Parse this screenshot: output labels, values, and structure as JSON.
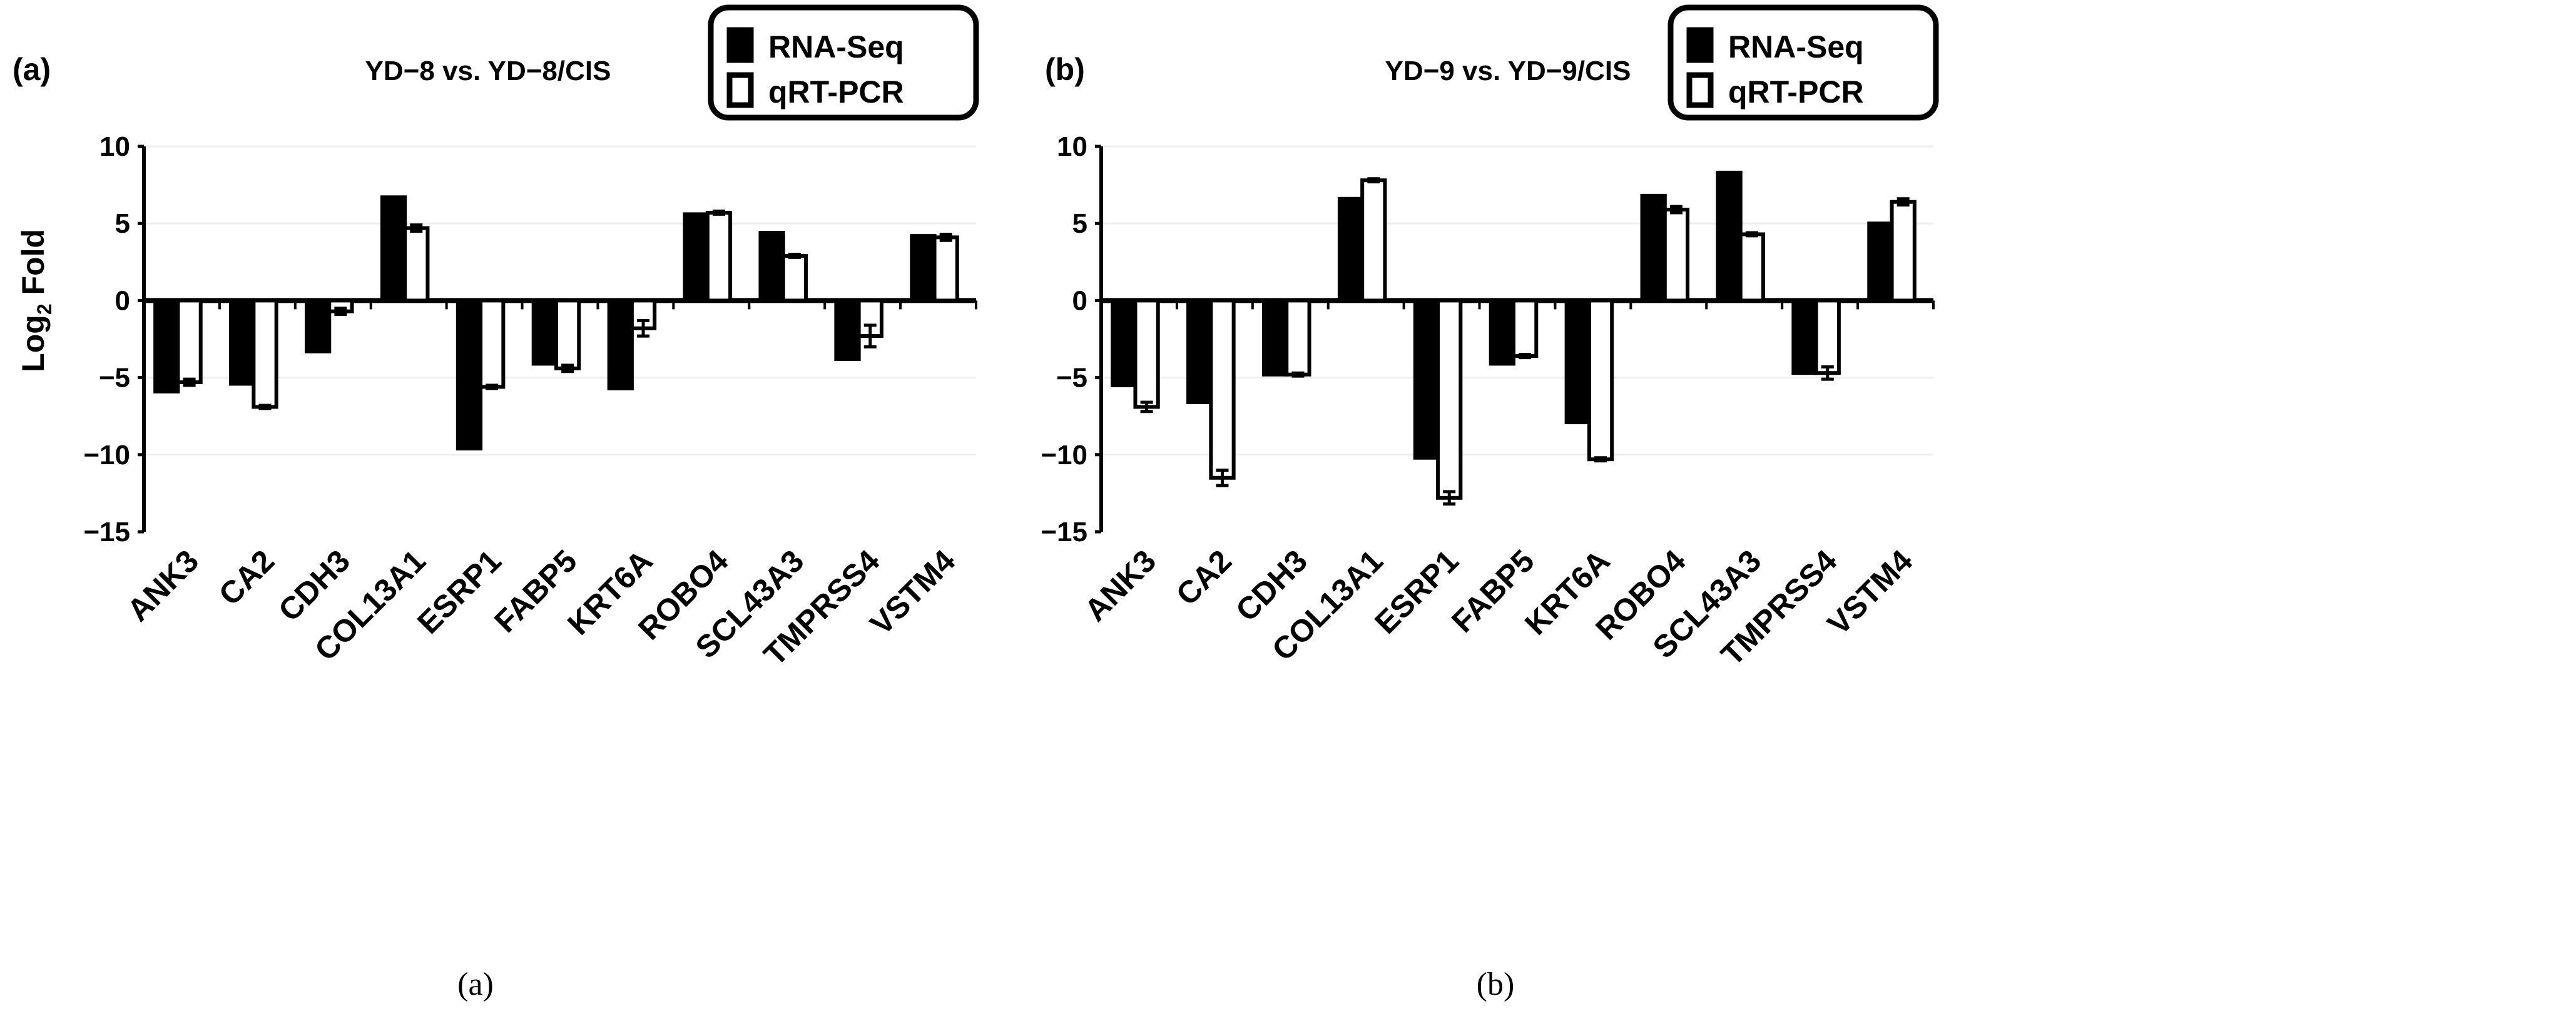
{
  "chart_data": [
    {
      "type": "bar",
      "panel_label": "(a)",
      "caption": "(a)",
      "title": "YD−8 vs. YD−8/CIS",
      "ylabel": "Log2 Fold",
      "ylabel_main": "Log",
      "ylabel_sub": "2",
      "ylabel_rest": " Fold",
      "ylim": [
        -15,
        10
      ],
      "yticks": [
        10,
        5,
        0,
        -5,
        -10,
        -15
      ],
      "grid": true,
      "legend_position": "top-right",
      "categories": [
        "ANK3",
        "CA2",
        "CDH3",
        "COL13A1",
        "ESRP1",
        "FABP5",
        "KRT6A",
        "ROBO4",
        "SCL43A3",
        "TMPRSS4",
        "VSTM4"
      ],
      "series": [
        {
          "name": "RNA-Seq",
          "color": "#000000",
          "values": [
            -5.9,
            -5.4,
            -3.3,
            6.7,
            -9.6,
            -4.1,
            -5.7,
            5.6,
            4.4,
            -3.8,
            4.2
          ]
        },
        {
          "name": "qRT-PCR",
          "color": "#ffffff",
          "values": [
            -5.3,
            -6.9,
            -0.7,
            4.7,
            -5.6,
            -4.4,
            -1.8,
            5.7,
            2.9,
            -2.3,
            4.1
          ],
          "errors": [
            0.2,
            0.1,
            0.2,
            0.2,
            0.1,
            0.2,
            0.5,
            0.1,
            0.1,
            0.7,
            0.2
          ]
        }
      ]
    },
    {
      "type": "bar",
      "panel_label": "(b)",
      "caption": "(b)",
      "title": "YD−9 vs. YD−9/CIS",
      "ylim": [
        -15,
        10
      ],
      "yticks": [
        10,
        5,
        0,
        -5,
        -10,
        -15
      ],
      "grid": true,
      "legend_position": "top-right",
      "categories": [
        "ANK3",
        "CA2",
        "CDH3",
        "COL13A1",
        "ESRP1",
        "FABP5",
        "KRT6A",
        "ROBO4",
        "SCL43A3",
        "TMPRSS4",
        "VSTM4"
      ],
      "series": [
        {
          "name": "RNA-Seq",
          "color": "#000000",
          "values": [
            -5.5,
            -6.6,
            -4.8,
            6.6,
            -10.2,
            -4.1,
            -7.9,
            6.8,
            8.3,
            -4.7,
            5.0
          ]
        },
        {
          "name": "qRT-PCR",
          "color": "#ffffff",
          "values": [
            -6.9,
            -11.5,
            -4.8,
            7.8,
            -12.8,
            -3.6,
            -10.3,
            5.9,
            4.3,
            -4.7,
            6.4
          ],
          "errors": [
            0.3,
            0.5,
            0.1,
            0.1,
            0.4,
            0.1,
            0.1,
            0.2,
            0.1,
            0.4,
            0.2
          ]
        }
      ]
    }
  ]
}
